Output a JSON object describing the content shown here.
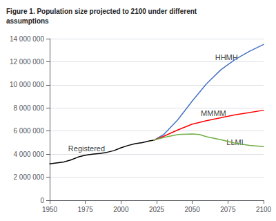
{
  "chart_data": {
    "type": "line",
    "title": "Figure 1. Population size projected to 2100 under different\nassumptions",
    "xlim": [
      1950,
      2100
    ],
    "xticks": [
      1950,
      1975,
      2000,
      2025,
      2050,
      2075,
      2100
    ],
    "ylim": [
      0,
      14000000
    ],
    "yticks": [
      0,
      {
        "value": 2000000,
        "label": "2 000 000"
      },
      {
        "value": 4000000,
        "label": "4 000 000"
      },
      {
        "value": 6000000,
        "label": "6 000 000"
      },
      {
        "value": 8000000,
        "label": "8 000 000"
      },
      {
        "value": 10000000,
        "label": "10 000 000"
      },
      {
        "value": 12000000,
        "label": "12 000 000"
      },
      {
        "value": 14000000,
        "label": "14 000 000"
      }
    ],
    "grid": true,
    "series": [
      {
        "name": "Registered",
        "color": "#000000",
        "x": [
          1950,
          1960,
          1965,
          1970,
          1975,
          1980,
          1985,
          1990,
          1995,
          2000,
          2005,
          2010,
          2015,
          2020,
          2023
        ],
        "values": [
          3150000,
          3320000,
          3500000,
          3750000,
          3900000,
          4000000,
          4050000,
          4150000,
          4300000,
          4550000,
          4750000,
          4900000,
          5000000,
          5150000,
          5200000
        ]
      },
      {
        "name": "HHMH",
        "color": "#4472C4",
        "x": [
          2023,
          2030,
          2040,
          2050,
          2060,
          2070,
          2080,
          2090,
          2100
        ],
        "values": [
          5200000,
          5700000,
          7000000,
          8600000,
          10100000,
          11300000,
          12200000,
          12900000,
          13500000
        ]
      },
      {
        "name": "MMMM",
        "color": "#FF0000",
        "x": [
          2023,
          2030,
          2040,
          2050,
          2060,
          2070,
          2080,
          2090,
          2100
        ],
        "values": [
          5200000,
          5550000,
          6100000,
          6600000,
          6900000,
          7150000,
          7400000,
          7600000,
          7800000
        ]
      },
      {
        "name": "LLML",
        "color": "#70AD47",
        "x": [
          2023,
          2030,
          2040,
          2050,
          2055,
          2060,
          2070,
          2080,
          2090,
          2100
        ],
        "values": [
          5200000,
          5450000,
          5700000,
          5750000,
          5700000,
          5500000,
          5250000,
          4950000,
          4750000,
          4650000
        ]
      }
    ],
    "annotations": [
      {
        "text": "Registered",
        "x": 1963,
        "y": 4500000
      },
      {
        "text": "HHMH",
        "x": 2066,
        "y": 12400000
      },
      {
        "text": "MMMM",
        "x": 2056,
        "y": 7550000
      },
      {
        "text": "LLML",
        "x": 2074,
        "y": 5050000
      }
    ]
  }
}
